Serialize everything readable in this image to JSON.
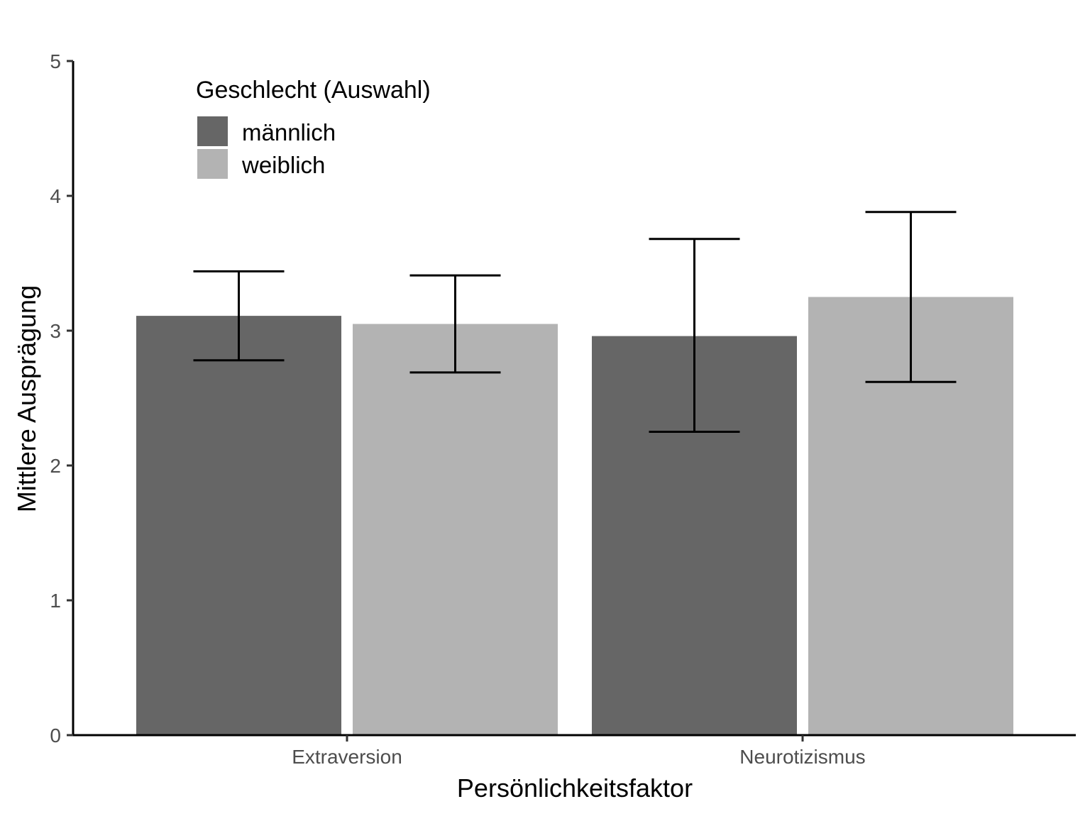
{
  "chart_data": {
    "type": "bar",
    "xlabel": "Persönlichkeitsfaktor",
    "ylabel": "Mittlere Ausprägung",
    "categories": [
      "Extraversion",
      "Neurotizismus"
    ],
    "yticks": [
      "0",
      "1",
      "2",
      "3",
      "4",
      "5"
    ],
    "ylim": [
      0,
      5
    ],
    "legend": {
      "title": "Geschlecht (Auswahl)",
      "position": "top-left"
    },
    "series": [
      {
        "name": "männlich",
        "color": "#666666",
        "values": [
          3.11,
          2.96
        ],
        "error_low": [
          2.78,
          2.25
        ],
        "error_high": [
          3.44,
          3.68
        ]
      },
      {
        "name": "weiblich",
        "color": "#b3b3b3",
        "values": [
          3.05,
          3.25
        ],
        "error_low": [
          2.69,
          2.62
        ],
        "error_high": [
          3.41,
          3.88
        ]
      }
    ],
    "grid": false
  }
}
